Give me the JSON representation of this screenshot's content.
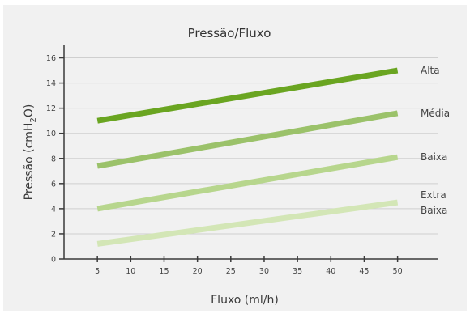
{
  "chart_data": {
    "type": "line",
    "title": "Pressão/Fluxo",
    "xlabel": "Fluxo (ml/h)",
    "ylabel_main": "Pressão (cmH",
    "ylabel_sub": "2",
    "ylabel_end": "O)",
    "x_ticks": [
      5,
      10,
      15,
      20,
      25,
      30,
      35,
      40,
      45,
      50
    ],
    "y_ticks": [
      0,
      2,
      4,
      6,
      8,
      10,
      12,
      14,
      16
    ],
    "xlim": [
      0,
      56
    ],
    "ylim": [
      0,
      17
    ],
    "grid": "horizontal",
    "series": [
      {
        "name": "Alta",
        "label_lines": [
          "Alta"
        ],
        "color": "#6aa521",
        "x": [
          5,
          50
        ],
        "y": [
          11.0,
          15.0
        ]
      },
      {
        "name": "Média",
        "label_lines": [
          "Média"
        ],
        "color": "#9bc26a",
        "x": [
          5,
          50
        ],
        "y": [
          7.4,
          11.6
        ]
      },
      {
        "name": "Baixa",
        "label_lines": [
          "Baixa"
        ],
        "color": "#b7d68d",
        "x": [
          5,
          50
        ],
        "y": [
          4.0,
          8.1
        ]
      },
      {
        "name": "Extra Baixa",
        "label_lines": [
          "Extra",
          "Baixa"
        ],
        "color": "#d3e6b6",
        "x": [
          5,
          50
        ],
        "y": [
          1.2,
          4.5
        ]
      }
    ]
  }
}
